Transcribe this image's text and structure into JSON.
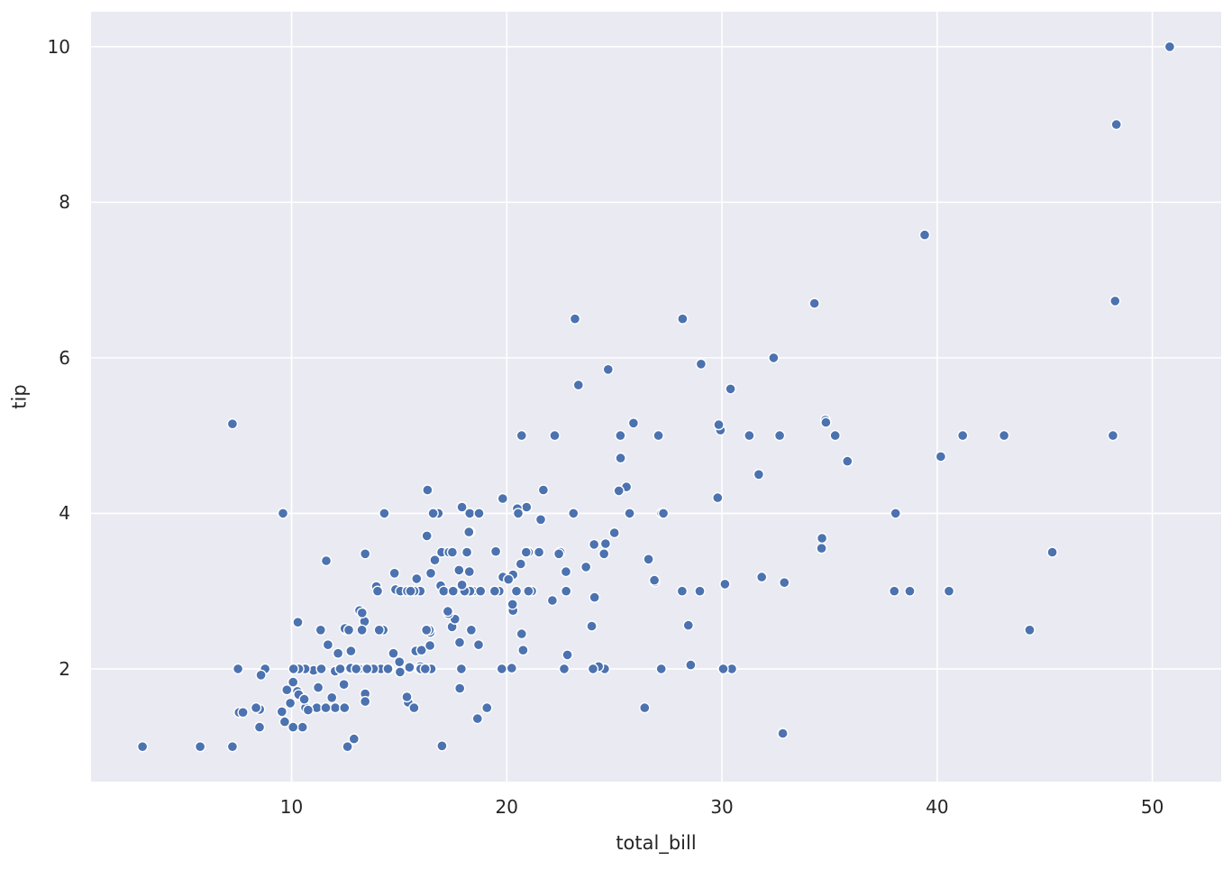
{
  "figure": {
    "background_color": "#ffffff",
    "plot_background_color": "#eaeaf2",
    "grid_color": "#ffffff",
    "dot_color": "#4c72b0",
    "dot_edge_color": "#ffffff",
    "text_color": "#262626"
  },
  "chart_data": {
    "type": "scatter",
    "title": "",
    "xlabel": "total_bill",
    "ylabel": "tip",
    "xlim": [
      0.68,
      53.2
    ],
    "ylim": [
      0.55,
      10.45
    ],
    "xticks": [
      10,
      20,
      30,
      40,
      50
    ],
    "yticks": [
      2,
      4,
      6,
      8,
      10
    ],
    "grid": true,
    "legend_position": "none",
    "points": [
      [
        16.99,
        1.01
      ],
      [
        10.34,
        1.66
      ],
      [
        21.01,
        3.5
      ],
      [
        23.68,
        3.31
      ],
      [
        24.59,
        3.61
      ],
      [
        25.29,
        4.71
      ],
      [
        8.77,
        2.0
      ],
      [
        26.88,
        3.12
      ],
      [
        15.04,
        1.96
      ],
      [
        14.78,
        3.23
      ],
      [
        10.27,
        1.71
      ],
      [
        35.26,
        5.0
      ],
      [
        15.42,
        1.57
      ],
      [
        18.43,
        3.0
      ],
      [
        14.83,
        3.02
      ],
      [
        21.58,
        3.92
      ],
      [
        10.33,
        1.67
      ],
      [
        16.29,
        3.71
      ],
      [
        16.97,
        3.5
      ],
      [
        20.65,
        3.35
      ],
      [
        17.92,
        4.08
      ],
      [
        20.29,
        2.75
      ],
      [
        15.77,
        2.23
      ],
      [
        39.42,
        7.58
      ],
      [
        19.82,
        3.18
      ],
      [
        17.81,
        2.34
      ],
      [
        13.37,
        2.0
      ],
      [
        12.69,
        2.0
      ],
      [
        21.7,
        4.3
      ],
      [
        19.65,
        3.0
      ],
      [
        9.55,
        1.45
      ],
      [
        18.35,
        2.5
      ],
      [
        15.06,
        3.0
      ],
      [
        20.69,
        2.45
      ],
      [
        17.78,
        3.27
      ],
      [
        24.06,
        3.6
      ],
      [
        16.31,
        2.0
      ],
      [
        16.93,
        3.07
      ],
      [
        18.69,
        2.31
      ],
      [
        31.27,
        5.0
      ],
      [
        16.04,
        2.24
      ],
      [
        17.46,
        2.54
      ],
      [
        13.94,
        3.06
      ],
      [
        9.68,
        1.32
      ],
      [
        30.4,
        5.6
      ],
      [
        18.29,
        3.0
      ],
      [
        22.23,
        5.0
      ],
      [
        32.4,
        6.0
      ],
      [
        28.55,
        2.05
      ],
      [
        18.04,
        3.0
      ],
      [
        12.54,
        2.5
      ],
      [
        10.29,
        2.6
      ],
      [
        34.81,
        5.2
      ],
      [
        9.94,
        1.56
      ],
      [
        25.56,
        4.34
      ],
      [
        19.49,
        3.51
      ],
      [
        38.01,
        3.0
      ],
      [
        26.41,
        1.5
      ],
      [
        11.24,
        1.76
      ],
      [
        48.27,
        6.73
      ],
      [
        20.29,
        3.21
      ],
      [
        13.81,
        2.0
      ],
      [
        11.02,
        1.98
      ],
      [
        18.29,
        3.76
      ],
      [
        17.59,
        2.64
      ],
      [
        20.08,
        3.15
      ],
      [
        16.45,
        2.47
      ],
      [
        3.07,
        1.0
      ],
      [
        20.23,
        2.01
      ],
      [
        15.01,
        2.09
      ],
      [
        12.02,
        1.97
      ],
      [
        17.07,
        3.0
      ],
      [
        26.86,
        3.14
      ],
      [
        25.28,
        5.0
      ],
      [
        14.73,
        2.2
      ],
      [
        10.51,
        1.25
      ],
      [
        17.92,
        3.08
      ],
      [
        27.2,
        4.0
      ],
      [
        22.76,
        3.0
      ],
      [
        17.29,
        2.71
      ],
      [
        19.44,
        3.0
      ],
      [
        16.66,
        3.4
      ],
      [
        10.07,
        1.83
      ],
      [
        32.68,
        5.0
      ],
      [
        15.98,
        2.03
      ],
      [
        34.83,
        5.17
      ],
      [
        13.03,
        2.0
      ],
      [
        18.28,
        4.0
      ],
      [
        24.71,
        5.85
      ],
      [
        21.16,
        3.0
      ],
      [
        28.97,
        3.0
      ],
      [
        22.49,
        3.5
      ],
      [
        5.75,
        1.0
      ],
      [
        16.32,
        4.3
      ],
      [
        22.75,
        3.25
      ],
      [
        40.17,
        4.73
      ],
      [
        27.28,
        4.0
      ],
      [
        12.03,
        1.5
      ],
      [
        21.01,
        3.0
      ],
      [
        12.46,
        1.5
      ],
      [
        11.35,
        2.5
      ],
      [
        15.38,
        3.0
      ],
      [
        44.3,
        2.5
      ],
      [
        22.42,
        3.48
      ],
      [
        20.92,
        4.08
      ],
      [
        15.36,
        1.64
      ],
      [
        20.49,
        4.06
      ],
      [
        25.21,
        4.29
      ],
      [
        18.24,
        3.76
      ],
      [
        14.31,
        4.0
      ],
      [
        14.0,
        3.0
      ],
      [
        7.25,
        1.0
      ],
      [
        38.07,
        4.0
      ],
      [
        23.95,
        2.55
      ],
      [
        25.71,
        4.0
      ],
      [
        17.31,
        3.5
      ],
      [
        29.93,
        5.07
      ],
      [
        10.65,
        1.5
      ],
      [
        12.43,
        1.8
      ],
      [
        24.08,
        2.92
      ],
      [
        11.69,
        2.31
      ],
      [
        13.42,
        1.68
      ],
      [
        14.26,
        2.5
      ],
      [
        15.95,
        2.0
      ],
      [
        12.48,
        2.52
      ],
      [
        29.8,
        4.2
      ],
      [
        8.52,
        1.48
      ],
      [
        14.52,
        2.0
      ],
      [
        11.38,
        2.0
      ],
      [
        22.82,
        2.18
      ],
      [
        19.08,
        1.5
      ],
      [
        20.27,
        2.83
      ],
      [
        11.17,
        1.5
      ],
      [
        12.26,
        2.0
      ],
      [
        18.26,
        3.25
      ],
      [
        8.51,
        1.25
      ],
      [
        10.33,
        2.0
      ],
      [
        14.15,
        2.0
      ],
      [
        16.0,
        2.0
      ],
      [
        13.16,
        2.75
      ],
      [
        17.47,
        3.5
      ],
      [
        34.3,
        6.7
      ],
      [
        41.19,
        5.0
      ],
      [
        27.05,
        5.0
      ],
      [
        16.43,
        2.3
      ],
      [
        8.35,
        1.5
      ],
      [
        18.64,
        1.36
      ],
      [
        11.87,
        1.63
      ],
      [
        9.78,
        1.73
      ],
      [
        7.51,
        2.0
      ],
      [
        14.07,
        2.5
      ],
      [
        13.13,
        2.0
      ],
      [
        17.26,
        2.74
      ],
      [
        24.55,
        2.0
      ],
      [
        19.77,
        2.0
      ],
      [
        29.85,
        5.14
      ],
      [
        48.17,
        5.0
      ],
      [
        25.0,
        3.75
      ],
      [
        13.39,
        2.61
      ],
      [
        16.49,
        2.0
      ],
      [
        21.5,
        3.5
      ],
      [
        12.66,
        2.5
      ],
      [
        16.21,
        2.0
      ],
      [
        13.81,
        2.0
      ],
      [
        17.51,
        3.0
      ],
      [
        24.52,
        3.48
      ],
      [
        20.76,
        2.24
      ],
      [
        31.71,
        4.5
      ],
      [
        10.59,
        1.61
      ],
      [
        10.63,
        2.0
      ],
      [
        50.81,
        10.0
      ],
      [
        15.81,
        3.16
      ],
      [
        7.25,
        5.15
      ],
      [
        31.85,
        3.18
      ],
      [
        16.82,
        4.0
      ],
      [
        32.9,
        3.11
      ],
      [
        17.89,
        2.0
      ],
      [
        14.48,
        2.0
      ],
      [
        9.6,
        4.0
      ],
      [
        34.63,
        3.55
      ],
      [
        34.65,
        3.68
      ],
      [
        23.33,
        5.65
      ],
      [
        45.35,
        3.5
      ],
      [
        23.17,
        6.5
      ],
      [
        40.55,
        3.0
      ],
      [
        20.69,
        5.0
      ],
      [
        20.9,
        3.5
      ],
      [
        30.46,
        2.0
      ],
      [
        18.15,
        3.5
      ],
      [
        23.1,
        4.0
      ],
      [
        15.69,
        1.5
      ],
      [
        19.81,
        4.19
      ],
      [
        28.44,
        2.56
      ],
      [
        15.48,
        2.02
      ],
      [
        16.58,
        4.0
      ],
      [
        7.56,
        1.44
      ],
      [
        10.34,
        2.0
      ],
      [
        43.11,
        5.0
      ],
      [
        13.0,
        2.0
      ],
      [
        13.51,
        2.0
      ],
      [
        18.71,
        4.0
      ],
      [
        12.74,
        2.01
      ],
      [
        13.0,
        2.0
      ],
      [
        16.4,
        2.5
      ],
      [
        20.53,
        4.0
      ],
      [
        16.47,
        3.23
      ],
      [
        26.59,
        3.41
      ],
      [
        38.73,
        3.0
      ],
      [
        24.27,
        2.03
      ],
      [
        12.76,
        2.23
      ],
      [
        30.06,
        2.0
      ],
      [
        25.89,
        5.16
      ],
      [
        48.33,
        9.0
      ],
      [
        13.27,
        2.5
      ],
      [
        28.17,
        6.5
      ],
      [
        12.9,
        1.1
      ],
      [
        28.15,
        3.0
      ],
      [
        11.59,
        1.5
      ],
      [
        7.74,
        1.44
      ],
      [
        30.14,
        3.09
      ],
      [
        12.16,
        2.2
      ],
      [
        13.42,
        3.48
      ],
      [
        8.58,
        1.92
      ],
      [
        15.98,
        3.0
      ],
      [
        13.42,
        1.58
      ],
      [
        16.27,
        2.5
      ],
      [
        10.09,
        2.0
      ],
      [
        20.45,
        3.0
      ],
      [
        13.28,
        2.72
      ],
      [
        22.12,
        2.88
      ],
      [
        24.01,
        2.0
      ],
      [
        15.69,
        3.0
      ],
      [
        11.61,
        3.39
      ],
      [
        10.77,
        1.47
      ],
      [
        15.53,
        3.0
      ],
      [
        10.07,
        1.25
      ],
      [
        12.6,
        1.0
      ],
      [
        32.83,
        1.17
      ],
      [
        35.83,
        4.67
      ],
      [
        29.03,
        5.92
      ],
      [
        27.18,
        2.0
      ],
      [
        22.67,
        2.0
      ],
      [
        17.82,
        1.75
      ],
      [
        18.78,
        3.0
      ]
    ]
  }
}
